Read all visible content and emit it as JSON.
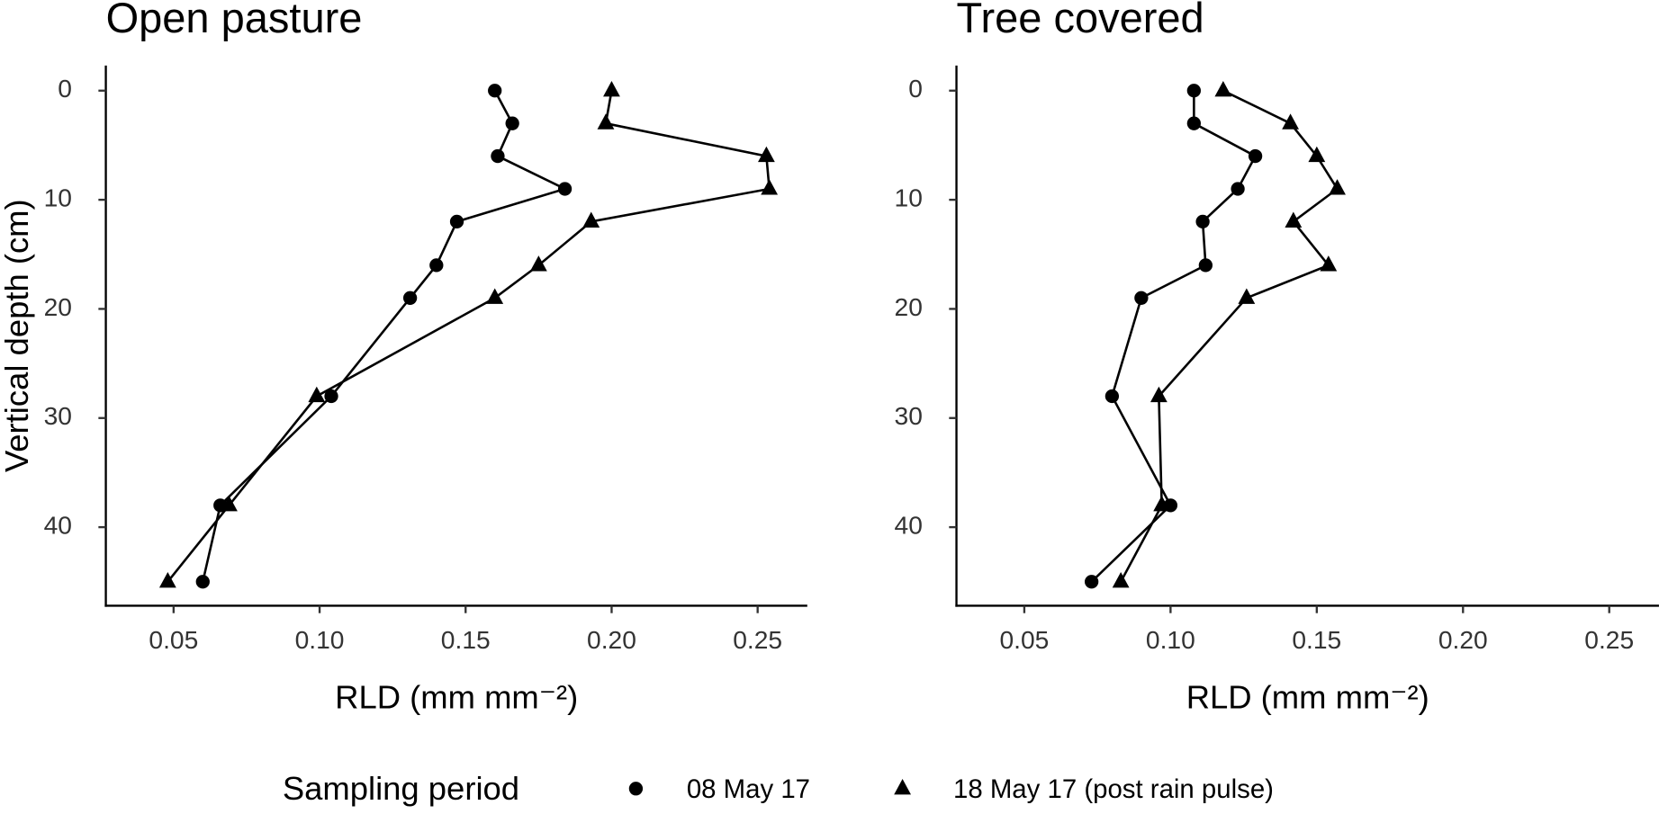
{
  "chart_data": [
    {
      "type": "line",
      "title": "Open pasture",
      "x_label": "RLD (mm mm⁻²)",
      "y_label": "Vertical depth (cm)",
      "legend_title": "Sampling period",
      "y": [
        0,
        3,
        6,
        9,
        12,
        16,
        19,
        28,
        38,
        45
      ],
      "series": [
        {
          "name": "08 May 17",
          "marker": "circle",
          "color": "#000000",
          "values": [
            0.16,
            0.166,
            0.161,
            0.184,
            0.147,
            0.14,
            0.131,
            0.104,
            0.066,
            0.06
          ]
        },
        {
          "name": "18 May 17 (post rain pulse)",
          "marker": "triangle",
          "color": "#000000",
          "values": [
            0.2,
            0.198,
            0.253,
            0.254,
            0.193,
            0.175,
            0.16,
            0.099,
            0.069,
            0.048
          ]
        }
      ],
      "xlim": [
        0.0268,
        0.267
      ],
      "xticks": [
        0.05,
        {
          "value": 0.1,
          "label": "0.10"
        },
        0.15,
        {
          "value": 0.2,
          "label": "0.20"
        },
        0.25
      ],
      "ylim": [
        -2.3,
        47.2
      ],
      "yticks": [
        0,
        10,
        20,
        30,
        40
      ],
      "y_reversed": true
    },
    {
      "type": "line",
      "title": "Tree covered",
      "x_label": "RLD (mm mm⁻²)",
      "y": [
        0,
        3,
        6,
        9,
        12,
        16,
        19,
        28,
        38,
        45
      ],
      "series": [
        {
          "marker": "circle",
          "color": "#000000",
          "values": [
            0.108,
            0.108,
            0.129,
            0.123,
            0.111,
            0.112,
            0.09,
            0.08,
            0.1,
            0.073
          ]
        },
        {
          "marker": "triangle",
          "color": "#000000",
          "values": [
            0.118,
            0.141,
            0.15,
            0.157,
            0.142,
            0.154,
            0.126,
            0.096,
            0.097,
            0.083
          ]
        }
      ],
      "xlim": [
        0.0268,
        0.267
      ],
      "xticks": [
        0.05,
        {
          "value": 0.1,
          "label": "0.10"
        },
        0.15,
        {
          "value": 0.2,
          "label": "0.20"
        },
        0.25
      ],
      "ylim": [
        -2.3,
        47.2
      ],
      "yticks": [
        0,
        10,
        20,
        30,
        40
      ],
      "y_reversed": true
    }
  ]
}
